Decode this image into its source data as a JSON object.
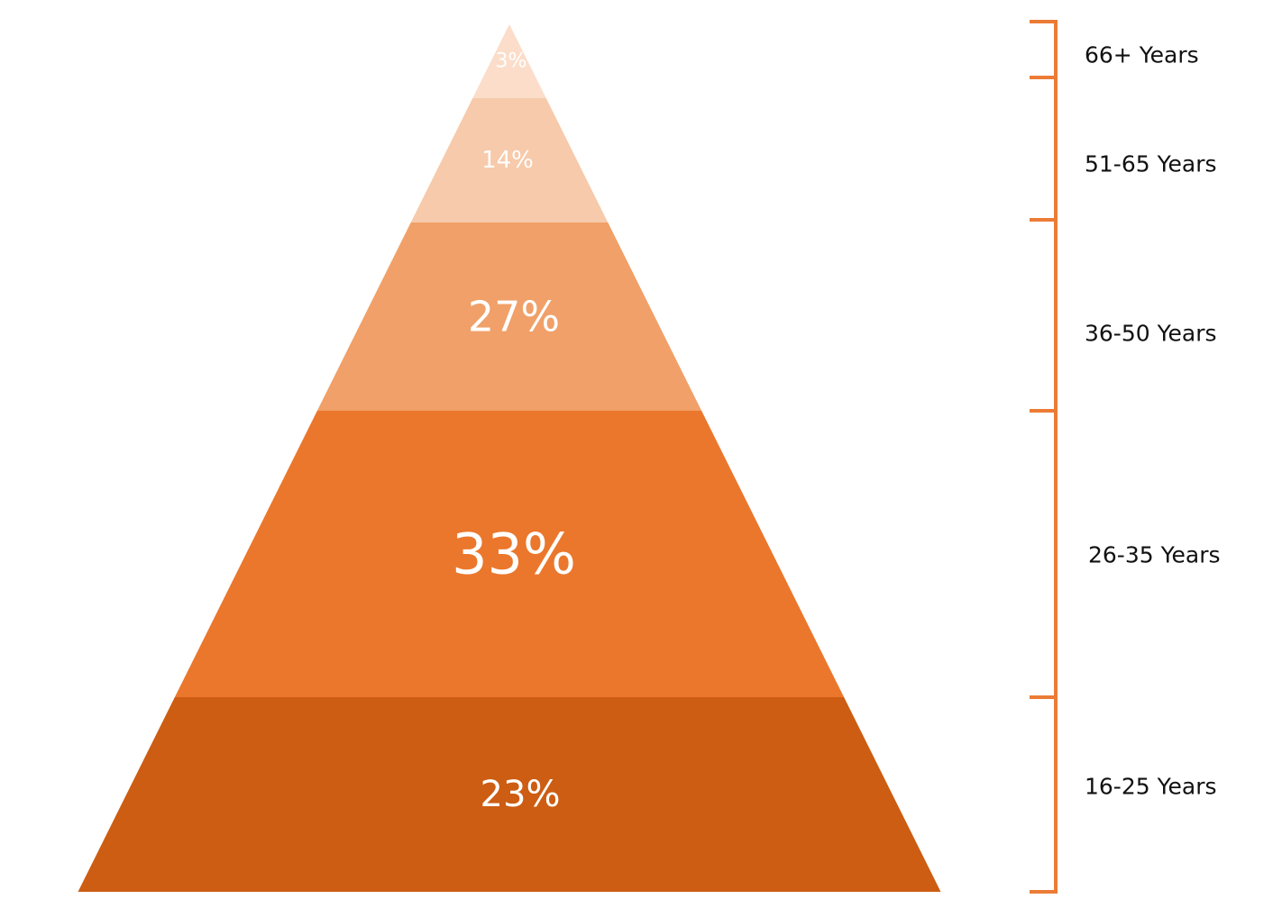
{
  "chart_data": {
    "type": "pyramid",
    "title": "",
    "segments": [
      {
        "label": "66+ Years",
        "value": 3,
        "value_label": "3%",
        "color": "#FBDDC9"
      },
      {
        "label": "51-65 Years",
        "value": 14,
        "value_label": "14%",
        "color": "#F6CAAA"
      },
      {
        "label": "36-50 Years",
        "value": 27,
        "value_label": "27%",
        "color": "#F0A068"
      },
      {
        "label": "26-35 Years",
        "value": 33,
        "value_label": "33%",
        "color": "#EB772C"
      },
      {
        "label": "16-25 Years",
        "value": 23,
        "value_label": "23%",
        "color": "#CC5D12"
      }
    ],
    "order": "top-to-bottom",
    "legend": "right bracket",
    "bracket_color": "#EB7C36"
  }
}
